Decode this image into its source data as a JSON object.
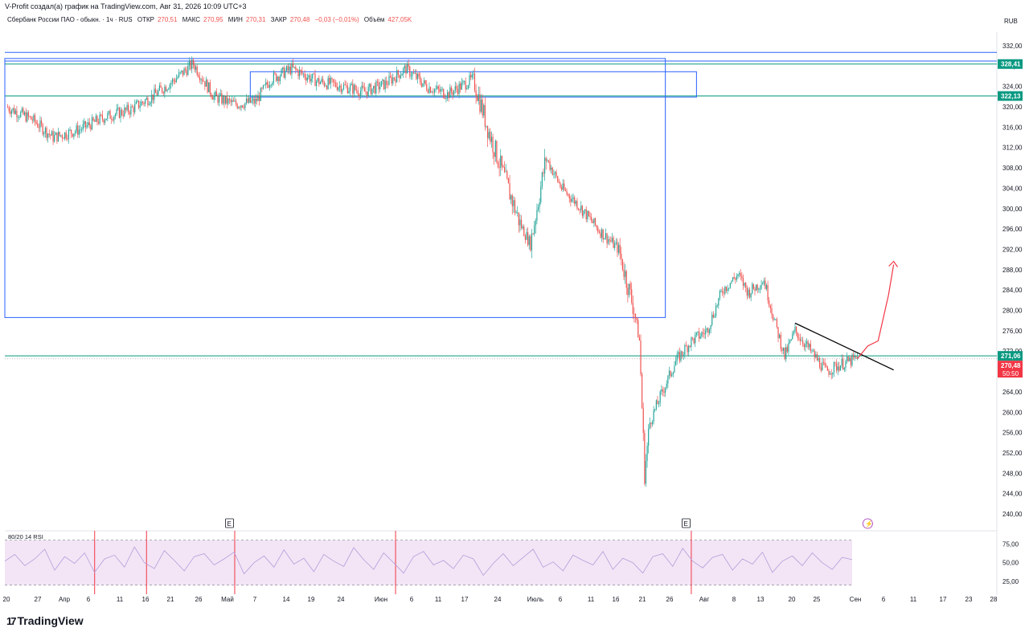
{
  "credit": "V-Profit создал(а) график на TradingView.com, Авг 31, 2026 10:09 UTC+3",
  "header": {
    "symbol": "Сбербанк России ПАО - обыкн. · 1ч · RUS",
    "open_label": "ОТКР",
    "open_value": "270,51",
    "high_label": "МАКС",
    "high_value": "270,95",
    "low_label": "МИН",
    "low_value": "270,31",
    "close_label": "ЗАКР",
    "close_value": "270,48",
    "change": "−0,03 (−0,01%)",
    "volume_label": "Объём",
    "volume_value": "427,05K"
  },
  "currency": "RUB",
  "brand": {
    "logo": "17",
    "name": "TradingView"
  },
  "colors": {
    "up": "#26a69a",
    "down": "#ef5350",
    "rectangle": "#2962ff",
    "hline_teal": "#089981",
    "trendline": "#000000",
    "arrow": "#f23645",
    "rsi_band": "#f3e5f5",
    "rsi_line": "#b39ddb",
    "price_marker": "#f23645"
  },
  "chart_data": [
    {
      "type": "candlestick",
      "title": "Сбербанк России ПАО - обыкн. · 1ч · RUS",
      "ylim": [
        237,
        335
      ],
      "y_ticks": [
        "332,00",
        "328,00",
        "324,00",
        "320,00",
        "316,00",
        "312,00",
        "308,00",
        "304,00",
        "300,00",
        "296,00",
        "292,00",
        "288,00",
        "284,00",
        "280,00",
        "276,00",
        "272,00",
        "268,00",
        "264,00",
        "260,00",
        "256,00",
        "252,00",
        "248,00",
        "244,00",
        "240,00"
      ],
      "x_ticks": [
        "20",
        "27",
        "Апр",
        "6",
        "11",
        "16",
        "21",
        "26",
        "Май",
        "7",
        "14",
        "19",
        "24",
        "Июн",
        "6",
        "11",
        "17",
        "24",
        "Июль",
        "6",
        "11",
        "16",
        "21",
        "26",
        "Авг",
        "8",
        "13",
        "20",
        "25",
        "Сен",
        "6",
        "11",
        "17",
        "23",
        "28"
      ],
      "price_path": [
        {
          "date": "2026-03-20",
          "price": 320.0
        },
        {
          "date": "2026-03-25",
          "price": 317.5
        },
        {
          "date": "2026-03-29",
          "price": 314.0
        },
        {
          "date": "2026-04-03",
          "price": 315.5
        },
        {
          "date": "2026-04-08",
          "price": 318.0
        },
        {
          "date": "2026-04-13",
          "price": 319.5
        },
        {
          "date": "2026-04-17",
          "price": 322.0
        },
        {
          "date": "2026-04-21",
          "price": 325.0
        },
        {
          "date": "2026-04-25",
          "price": 328.5
        },
        {
          "date": "2026-04-29",
          "price": 322.0
        },
        {
          "date": "2026-05-03",
          "price": 320.5
        },
        {
          "date": "2026-05-07",
          "price": 321.0
        },
        {
          "date": "2026-05-10",
          "price": 325.5
        },
        {
          "date": "2026-05-14",
          "price": 327.5
        },
        {
          "date": "2026-05-19",
          "price": 325.0
        },
        {
          "date": "2026-05-24",
          "price": 324.0
        },
        {
          "date": "2026-05-28",
          "price": 323.0
        },
        {
          "date": "2026-06-01",
          "price": 324.5
        },
        {
          "date": "2026-06-05",
          "price": 327.5
        },
        {
          "date": "2026-06-09",
          "price": 324.0
        },
        {
          "date": "2026-06-13",
          "price": 322.5
        },
        {
          "date": "2026-06-18",
          "price": 325.5
        },
        {
          "date": "2026-06-21",
          "price": 315.0
        },
        {
          "date": "2026-06-24",
          "price": 306.0
        },
        {
          "date": "2026-06-27",
          "price": 297.0
        },
        {
          "date": "2026-06-29",
          "price": 293.0
        },
        {
          "date": "2026-07-02",
          "price": 310.0
        },
        {
          "date": "2026-07-05",
          "price": 304.0
        },
        {
          "date": "2026-07-08",
          "price": 301.0
        },
        {
          "date": "2026-07-12",
          "price": 296.0
        },
        {
          "date": "2026-07-16",
          "price": 292.0
        },
        {
          "date": "2026-07-19",
          "price": 280.0
        },
        {
          "date": "2026-07-20",
          "price": 274.0
        },
        {
          "date": "2026-07-21",
          "price": 248.0
        },
        {
          "date": "2026-07-22",
          "price": 258.0
        },
        {
          "date": "2026-07-24",
          "price": 263.0
        },
        {
          "date": "2026-07-27",
          "price": 270.0
        },
        {
          "date": "2026-07-30",
          "price": 274.0
        },
        {
          "date": "2026-08-02",
          "price": 276.0
        },
        {
          "date": "2026-08-05",
          "price": 284.0
        },
        {
          "date": "2026-08-08",
          "price": 287.0
        },
        {
          "date": "2026-08-10",
          "price": 283.5
        },
        {
          "date": "2026-08-13",
          "price": 286.0
        },
        {
          "date": "2026-08-15",
          "price": 278.0
        },
        {
          "date": "2026-08-17",
          "price": 271.0
        },
        {
          "date": "2026-08-19",
          "price": 276.0
        },
        {
          "date": "2026-08-22",
          "price": 272.0
        },
        {
          "date": "2026-08-25",
          "price": 268.0
        },
        {
          "date": "2026-08-28",
          "price": 269.5
        },
        {
          "date": "2026-08-31",
          "price": 270.48
        }
      ],
      "price_labels": [
        {
          "price": 328.41,
          "text": "328,41",
          "color": "#089981"
        },
        {
          "price": 322.13,
          "text": "322,13",
          "color": "#089981"
        },
        {
          "price": 271.06,
          "text": "271,06",
          "color": "#089981"
        },
        {
          "price": 270.48,
          "text": "270,48",
          "color": "#f23645"
        }
      ],
      "countdown": "50:50",
      "current_price": 270.48,
      "drawings": {
        "hlines": [
          330.7,
          329.0,
          328.41,
          322.13,
          271.06
        ],
        "big_box": {
          "start": "2026-03-20",
          "end": "2026-07-25",
          "top": 329.5,
          "bottom": 278.6
        },
        "small_box": {
          "start": "2026-05-06",
          "end": "2026-07-31",
          "top": 326.9,
          "bottom": 321.9
        },
        "trendline": {
          "start": {
            "date": "2026-08-19",
            "price": 277.5
          },
          "end": {
            "date": "2026-09-07",
            "price": 268.3
          }
        },
        "forecast_arrow": [
          {
            "date": "2026-08-31",
            "price": 270.5
          },
          {
            "date": "2026-09-02",
            "price": 273.0
          },
          {
            "date": "2026-09-04",
            "price": 274.0
          },
          {
            "date": "2026-09-06",
            "price": 283.0
          },
          {
            "date": "2026-09-07",
            "price": 289.0
          }
        ]
      },
      "event_markers": [
        {
          "date": "2026-05-02",
          "text": "E"
        },
        {
          "date": "2026-07-29",
          "text": "E"
        },
        {
          "date": "2026-09-02",
          "text": "⚡"
        }
      ]
    },
    {
      "type": "line",
      "title": "80/20 14 RSI",
      "ylim": [
        10,
        85
      ],
      "y_ticks": [
        "75,00",
        "50,00",
        "25,00"
      ],
      "band": [
        20,
        80
      ],
      "series": [
        {
          "values": [
            52,
            61,
            46,
            55,
            68,
            40,
            58,
            49,
            63,
            37,
            55,
            60,
            44,
            71,
            50,
            42,
            66,
            53,
            39,
            58,
            62,
            47,
            55,
            64,
            35,
            50,
            59,
            44,
            67,
            48,
            56,
            38,
            61,
            52,
            45,
            70,
            54,
            41,
            63,
            50,
            36,
            58,
            65,
            47,
            53,
            42,
            60,
            55,
            33,
            49,
            62,
            46,
            57,
            68,
            44,
            51,
            39,
            60,
            53,
            47,
            65,
            41,
            56,
            50,
            36,
            58,
            62,
            45,
            69,
            52,
            43,
            57,
            61,
            40,
            55,
            48,
            64,
            37,
            52,
            59,
            46,
            63,
            50,
            41,
            57,
            54
          ]
        }
      ],
      "red_markers": [
        "2026-04-06",
        "2026-04-16",
        "2026-05-03",
        "2026-06-03",
        "2026-07-30"
      ]
    }
  ]
}
